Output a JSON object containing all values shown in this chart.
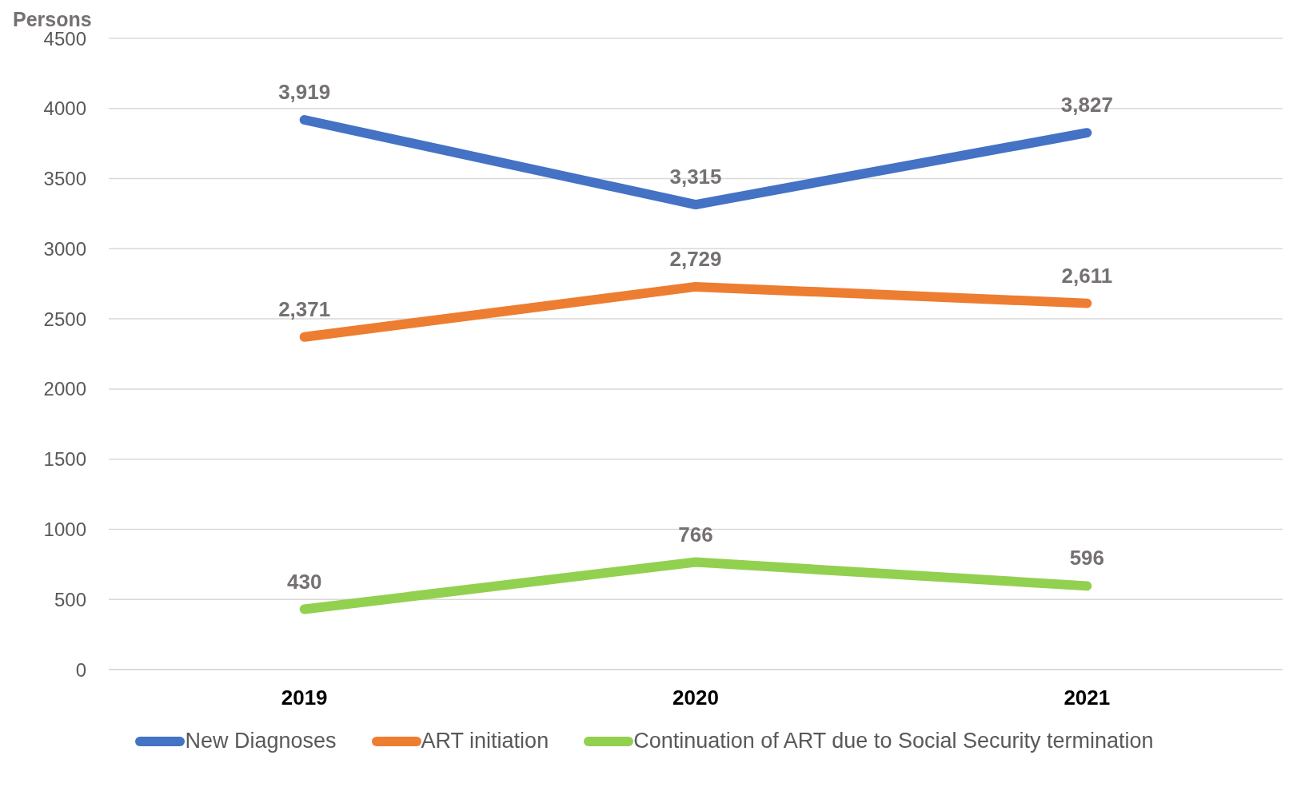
{
  "chart_data": {
    "type": "line",
    "ylabel": "Persons",
    "categories": [
      "2019",
      "2020",
      "2021"
    ],
    "series": [
      {
        "name": "New Diagnoses",
        "color": "#4472c4",
        "values": [
          3919,
          3315,
          3827
        ],
        "value_labels": [
          "3,919",
          "3,315",
          "3,827"
        ]
      },
      {
        "name": "ART initiation",
        "color": "#ed7d31",
        "values": [
          2371,
          2729,
          2611
        ],
        "value_labels": [
          "2,371",
          "2,729",
          "2,611"
        ]
      },
      {
        "name": "Continuation of ART due to Social Security termination",
        "color": "#92d050",
        "values": [
          430,
          766,
          596
        ],
        "value_labels": [
          "430",
          "766",
          "596"
        ]
      }
    ],
    "ylim": [
      0,
      4500
    ],
    "yticks": [
      0,
      500,
      1000,
      1500,
      2000,
      2500,
      3000,
      3500,
      4000,
      4500
    ],
    "grid": "y",
    "legend": "bottom",
    "marker": "none",
    "line_style": "solid"
  }
}
